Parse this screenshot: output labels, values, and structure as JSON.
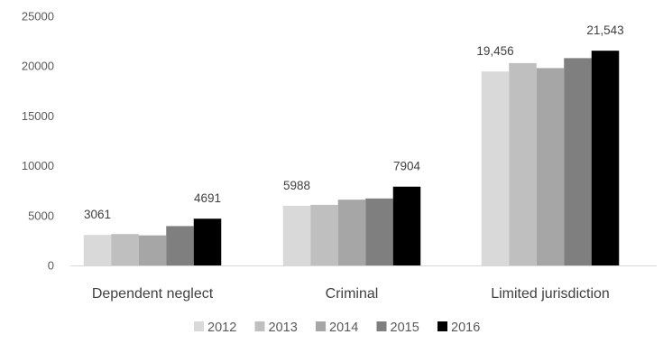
{
  "chart_data": {
    "type": "bar",
    "title": "",
    "xlabel": "",
    "ylabel": "",
    "ylim": [
      0,
      25000
    ],
    "yticks": [
      "0",
      "5000",
      "10000",
      "15000",
      "20000",
      "25000"
    ],
    "grid": false,
    "legend_position": "bottom",
    "categories": [
      "Dependent neglect",
      "Criminal",
      "Limited jurisdiction"
    ],
    "series": [
      {
        "name": "2012",
        "color": "#d9d9d9",
        "values": [
          3061,
          5988,
          19456
        ]
      },
      {
        "name": "2013",
        "color": "#bfbfbf",
        "values": [
          3150,
          6080,
          20300
        ]
      },
      {
        "name": "2014",
        "color": "#a6a6a6",
        "values": [
          3020,
          6600,
          19800
        ]
      },
      {
        "name": "2015",
        "color": "#7f7f7f",
        "values": [
          3950,
          6720,
          20800
        ]
      },
      {
        "name": "2016",
        "color": "#000000",
        "values": [
          4691,
          7904,
          21543
        ]
      }
    ],
    "data_labels": [
      {
        "category": 0,
        "series": 0,
        "text": "3061"
      },
      {
        "category": 0,
        "series": 4,
        "text": "4691"
      },
      {
        "category": 1,
        "series": 0,
        "text": "5988"
      },
      {
        "category": 1,
        "series": 4,
        "text": "7904"
      },
      {
        "category": 2,
        "series": 0,
        "text": "19,456"
      },
      {
        "category": 2,
        "series": 4,
        "text": "21,543"
      }
    ]
  }
}
